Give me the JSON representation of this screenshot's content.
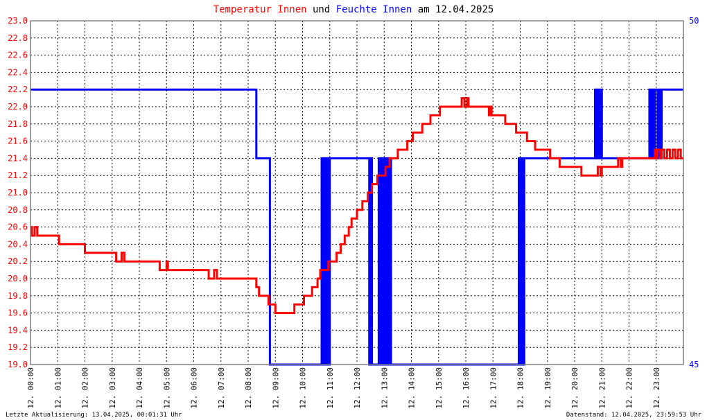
{
  "colors": {
    "temperature": "#ff0000",
    "humidity": "#0000ff",
    "frame": "#7f7f7f",
    "text": "#000000"
  },
  "title": {
    "part1": "Temperatur Innen",
    "part2": "und",
    "part3": "Feuchte Innen",
    "part4": "am 12.04.2025"
  },
  "footer": {
    "left": "Letzte Aktualisierung: 13.04.2025, 00:01:31 Uhr",
    "right": "Datenstand: 12.04.2025, 23:59:53 Uhr"
  },
  "chart_data": {
    "type": "line",
    "title": "Temperatur Innen und Feuchte Innen am 12.04.2025",
    "grid": true,
    "xlim": [
      0,
      24
    ],
    "x_ticks": [
      "12. 00:00",
      "12. 01:00",
      "12. 02:00",
      "12. 03:00",
      "12. 04:00",
      "12. 05:00",
      "12. 06:00",
      "12. 07:00",
      "12. 08:00",
      "12. 09:00",
      "12. 10:00",
      "12. 11:00",
      "12. 12:00",
      "12. 13:00",
      "12. 14:00",
      "12. 15:00",
      "12. 16:00",
      "12. 17:00",
      "12. 18:00",
      "12. 19:00",
      "12. 20:00",
      "12. 21:00",
      "12. 22:00",
      "12. 23:00"
    ],
    "y_left": {
      "lim": [
        19.0,
        23.0
      ],
      "ticks": [
        "19.0",
        "19.2",
        "19.4",
        "19.6",
        "19.8",
        "20.0",
        "20.2",
        "20.4",
        "20.6",
        "20.8",
        "21.0",
        "21.2",
        "21.4",
        "21.6",
        "21.8",
        "22.0",
        "22.2",
        "22.4",
        "22.6",
        "22.8",
        "23.0"
      ]
    },
    "y_right": {
      "lim": [
        45,
        50
      ],
      "ticks": [
        "45",
        "50"
      ]
    },
    "series": [
      {
        "name": "Temperatur Innen",
        "axis": "left",
        "color": "#ff0000",
        "points": [
          [
            0.0,
            20.6
          ],
          [
            0.05,
            20.5
          ],
          [
            0.15,
            20.6
          ],
          [
            0.25,
            20.5
          ],
          [
            1.0,
            20.5
          ],
          [
            1.05,
            20.4
          ],
          [
            1.95,
            20.4
          ],
          [
            2.0,
            20.3
          ],
          [
            2.1,
            20.3
          ],
          [
            2.15,
            20.3
          ],
          [
            3.1,
            20.3
          ],
          [
            3.15,
            20.2
          ],
          [
            3.3,
            20.2
          ],
          [
            3.35,
            20.3
          ],
          [
            3.45,
            20.2
          ],
          [
            4.7,
            20.2
          ],
          [
            4.75,
            20.1
          ],
          [
            4.95,
            20.1
          ],
          [
            5.0,
            20.2
          ],
          [
            5.05,
            20.1
          ],
          [
            6.5,
            20.1
          ],
          [
            6.55,
            20.0
          ],
          [
            6.7,
            20.0
          ],
          [
            6.75,
            20.1
          ],
          [
            6.85,
            20.0
          ],
          [
            8.2,
            20.0
          ],
          [
            8.3,
            19.9
          ],
          [
            8.4,
            19.8
          ],
          [
            8.7,
            19.8
          ],
          [
            8.75,
            19.7
          ],
          [
            8.95,
            19.7
          ],
          [
            9.0,
            19.6
          ],
          [
            9.6,
            19.6
          ],
          [
            9.7,
            19.7
          ],
          [
            9.95,
            19.7
          ],
          [
            10.05,
            19.8
          ],
          [
            10.25,
            19.8
          ],
          [
            10.35,
            19.9
          ],
          [
            10.55,
            20.0
          ],
          [
            10.65,
            20.1
          ],
          [
            10.85,
            20.1
          ],
          [
            10.95,
            20.2
          ],
          [
            11.15,
            20.2
          ],
          [
            11.25,
            20.3
          ],
          [
            11.4,
            20.4
          ],
          [
            11.55,
            20.5
          ],
          [
            11.7,
            20.6
          ],
          [
            11.8,
            20.7
          ],
          [
            11.95,
            20.7
          ],
          [
            12.0,
            20.8
          ],
          [
            12.15,
            20.8
          ],
          [
            12.2,
            20.9
          ],
          [
            12.35,
            20.9
          ],
          [
            12.4,
            21.0
          ],
          [
            12.5,
            21.0
          ],
          [
            12.55,
            21.1
          ],
          [
            12.7,
            21.1
          ],
          [
            12.75,
            21.2
          ],
          [
            12.95,
            21.2
          ],
          [
            13.05,
            21.3
          ],
          [
            13.15,
            21.3
          ],
          [
            13.2,
            21.4
          ],
          [
            13.4,
            21.4
          ],
          [
            13.5,
            21.5
          ],
          [
            13.75,
            21.5
          ],
          [
            13.85,
            21.6
          ],
          [
            14.0,
            21.6
          ],
          [
            14.05,
            21.7
          ],
          [
            14.3,
            21.7
          ],
          [
            14.4,
            21.8
          ],
          [
            14.6,
            21.8
          ],
          [
            14.7,
            21.9
          ],
          [
            15.0,
            21.9
          ],
          [
            15.05,
            22.0
          ],
          [
            15.8,
            22.0
          ],
          [
            15.85,
            22.1
          ],
          [
            15.95,
            22.0
          ],
          [
            16.05,
            22.1
          ],
          [
            16.1,
            22.0
          ],
          [
            16.8,
            22.0
          ],
          [
            16.85,
            21.9
          ],
          [
            16.9,
            22.0
          ],
          [
            16.95,
            21.9
          ],
          [
            17.4,
            21.9
          ],
          [
            17.45,
            21.8
          ],
          [
            17.8,
            21.8
          ],
          [
            17.85,
            21.7
          ],
          [
            18.2,
            21.7
          ],
          [
            18.25,
            21.6
          ],
          [
            18.5,
            21.6
          ],
          [
            18.55,
            21.5
          ],
          [
            19.05,
            21.5
          ],
          [
            19.1,
            21.4
          ],
          [
            19.4,
            21.4
          ],
          [
            19.45,
            21.3
          ],
          [
            20.2,
            21.3
          ],
          [
            20.25,
            21.2
          ],
          [
            20.8,
            21.2
          ],
          [
            20.85,
            21.3
          ],
          [
            20.95,
            21.2
          ],
          [
            21.0,
            21.3
          ],
          [
            21.55,
            21.3
          ],
          [
            21.6,
            21.4
          ],
          [
            21.7,
            21.3
          ],
          [
            21.75,
            21.4
          ],
          [
            22.9,
            21.4
          ],
          [
            22.95,
            21.5
          ],
          [
            23.0,
            21.4
          ],
          [
            23.05,
            21.5
          ],
          [
            23.15,
            21.4
          ],
          [
            23.2,
            21.5
          ],
          [
            23.3,
            21.4
          ],
          [
            23.4,
            21.5
          ],
          [
            23.5,
            21.4
          ],
          [
            23.6,
            21.5
          ],
          [
            23.7,
            21.4
          ],
          [
            23.8,
            21.5
          ],
          [
            23.9,
            21.4
          ],
          [
            24.0,
            21.4
          ]
        ]
      },
      {
        "name": "Feuchte Innen",
        "axis": "right",
        "color": "#0000ff",
        "points": [
          [
            0.0,
            49.0
          ],
          [
            8.25,
            49.0
          ],
          [
            8.3,
            48.0
          ],
          [
            8.75,
            48.0
          ],
          [
            8.8,
            45.0
          ],
          [
            10.65,
            45.0
          ],
          [
            10.7,
            48.0
          ],
          [
            10.75,
            45.0
          ],
          [
            10.8,
            48.0
          ],
          [
            10.85,
            45.0
          ],
          [
            10.9,
            48.0
          ],
          [
            10.95,
            45.0
          ],
          [
            11.0,
            48.0
          ],
          [
            12.4,
            48.0
          ],
          [
            12.45,
            45.0
          ],
          [
            12.5,
            48.0
          ],
          [
            12.55,
            45.0
          ],
          [
            12.75,
            45.0
          ],
          [
            12.8,
            48.0
          ],
          [
            12.85,
            45.0
          ],
          [
            12.9,
            48.0
          ],
          [
            12.95,
            45.0
          ],
          [
            13.0,
            48.0
          ],
          [
            13.05,
            45.0
          ],
          [
            13.1,
            48.0
          ],
          [
            13.15,
            45.0
          ],
          [
            13.2,
            48.0
          ],
          [
            13.25,
            45.0
          ],
          [
            17.9,
            45.0
          ],
          [
            17.95,
            48.0
          ],
          [
            18.0,
            45.0
          ],
          [
            18.05,
            48.0
          ],
          [
            18.1,
            45.0
          ],
          [
            18.15,
            48.0
          ],
          [
            20.7,
            48.0
          ],
          [
            20.75,
            49.0
          ],
          [
            20.8,
            48.0
          ],
          [
            20.85,
            49.0
          ],
          [
            20.9,
            48.0
          ],
          [
            20.95,
            49.0
          ],
          [
            21.0,
            48.0
          ],
          [
            22.7,
            48.0
          ],
          [
            22.75,
            49.0
          ],
          [
            22.8,
            48.0
          ],
          [
            22.85,
            49.0
          ],
          [
            22.9,
            48.0
          ],
          [
            22.95,
            49.0
          ],
          [
            23.0,
            49.0
          ],
          [
            23.05,
            48.0
          ],
          [
            23.1,
            49.0
          ],
          [
            23.15,
            48.0
          ],
          [
            23.2,
            49.0
          ],
          [
            24.0,
            49.0
          ]
        ]
      }
    ]
  }
}
